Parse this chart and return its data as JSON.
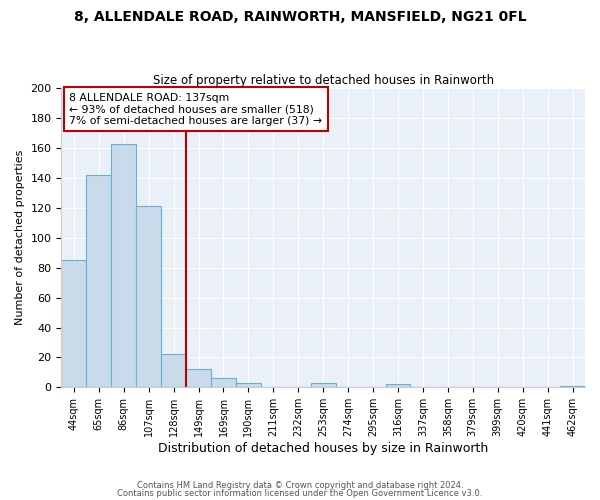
{
  "title": "8, ALLENDALE ROAD, RAINWORTH, MANSFIELD, NG21 0FL",
  "subtitle": "Size of property relative to detached houses in Rainworth",
  "xlabel": "Distribution of detached houses by size in Rainworth",
  "ylabel": "Number of detached properties",
  "bar_labels": [
    "44sqm",
    "65sqm",
    "86sqm",
    "107sqm",
    "128sqm",
    "149sqm",
    "169sqm",
    "190sqm",
    "211sqm",
    "232sqm",
    "253sqm",
    "274sqm",
    "295sqm",
    "316sqm",
    "337sqm",
    "358sqm",
    "379sqm",
    "399sqm",
    "420sqm",
    "441sqm",
    "462sqm"
  ],
  "bar_values": [
    85,
    142,
    163,
    121,
    22,
    12,
    6,
    3,
    0,
    0,
    3,
    0,
    0,
    2,
    0,
    0,
    0,
    0,
    0,
    0,
    1
  ],
  "bar_color": "#c9daea",
  "bar_edge_color": "#6aafd6",
  "bar_linewidth": 0.8,
  "vline_x": 4.5,
  "vline_color": "#bb0000",
  "vline_linewidth": 1.5,
  "annotation_text": "8 ALLENDALE ROAD: 137sqm\n← 93% of detached houses are smaller (518)\n7% of semi-detached houses are larger (37) →",
  "annotation_box_color": "#bb0000",
  "ylim": [
    0,
    200
  ],
  "yticks": [
    0,
    20,
    40,
    60,
    80,
    100,
    120,
    140,
    160,
    180,
    200
  ],
  "footer1": "Contains HM Land Registry data © Crown copyright and database right 2024.",
  "footer2": "Contains public sector information licensed under the Open Government Licence v3.0.",
  "bg_color": "#ffffff",
  "plot_bg_color": "#eaf0f7"
}
